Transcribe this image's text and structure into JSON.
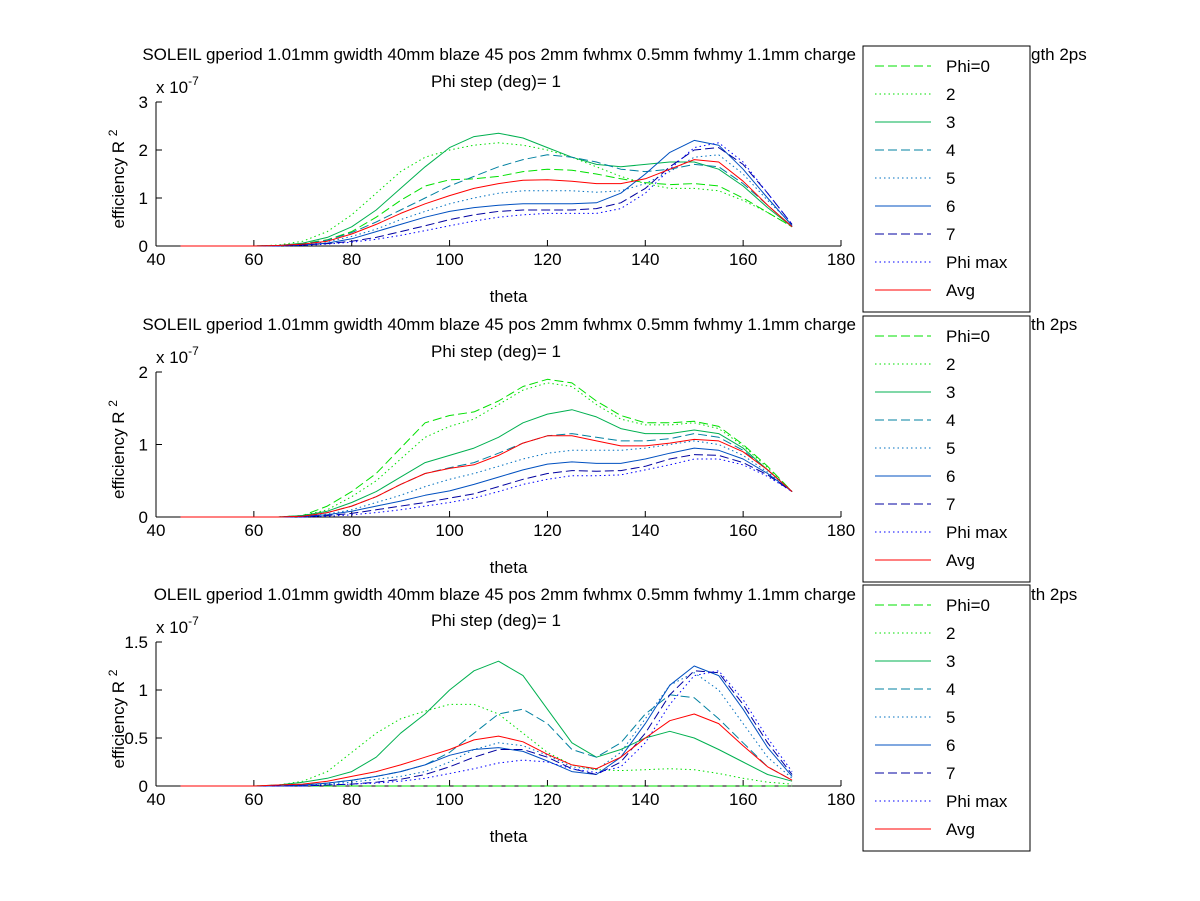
{
  "chart_data": [
    {
      "type": "line",
      "title": "SOLEIL gperiod 1.01mm gwidth 40mm blaze 45 pos 2mm fwhmx 0.5mm fwhmy 1.1mm charge",
      "title_suffix": "gth 2ps",
      "subtitle": "Phi step (deg)= 1",
      "xlabel": "theta",
      "ylabel": "efficiency R",
      "ylabel_sup": "2",
      "y_multiplier": "x 10",
      "y_multiplier_exp": "-7",
      "xlim": [
        40,
        180
      ],
      "ylim": [
        0,
        3
      ],
      "x_ticks": [
        "40",
        "60",
        "80",
        "100",
        "120",
        "140",
        "160",
        "180"
      ],
      "y_ticks": [
        "0",
        "1",
        "2",
        "3"
      ],
      "grid": false,
      "legend_position": "right",
      "x": [
        45,
        50,
        55,
        60,
        65,
        70,
        75,
        80,
        85,
        90,
        95,
        100,
        105,
        110,
        115,
        120,
        125,
        130,
        135,
        140,
        145,
        150,
        155,
        160,
        165,
        170
      ],
      "series": [
        {
          "name": "Phi=0",
          "color": "#00e000",
          "dash": "dashed",
          "values": [
            0,
            0,
            0,
            0,
            0.01,
            0.05,
            0.13,
            0.3,
            0.6,
            0.95,
            1.25,
            1.38,
            1.4,
            1.45,
            1.55,
            1.6,
            1.58,
            1.5,
            1.4,
            1.32,
            1.28,
            1.3,
            1.25,
            1.0,
            0.7,
            0.4
          ]
        },
        {
          "name": "2",
          "color": "#00e000",
          "dash": "dotted",
          "values": [
            0,
            0,
            0,
            0,
            0.02,
            0.1,
            0.3,
            0.65,
            1.1,
            1.55,
            1.85,
            2.0,
            2.1,
            2.15,
            2.1,
            2.0,
            1.85,
            1.65,
            1.45,
            1.3,
            1.2,
            1.2,
            1.15,
            0.95,
            0.7,
            0.4
          ]
        },
        {
          "name": "3",
          "color": "#00b050",
          "dash": "solid",
          "values": [
            0,
            0,
            0,
            0,
            0.01,
            0.06,
            0.18,
            0.4,
            0.75,
            1.2,
            1.65,
            2.05,
            2.28,
            2.35,
            2.25,
            2.05,
            1.85,
            1.7,
            1.65,
            1.7,
            1.75,
            1.75,
            1.6,
            1.25,
            0.8,
            0.4
          ]
        },
        {
          "name": "4",
          "color": "#0080a0",
          "dash": "dashed",
          "values": [
            0,
            0,
            0,
            0,
            0.01,
            0.04,
            0.12,
            0.28,
            0.5,
            0.75,
            1.0,
            1.25,
            1.45,
            1.65,
            1.8,
            1.9,
            1.85,
            1.75,
            1.6,
            1.55,
            1.6,
            1.7,
            1.65,
            1.3,
            0.85,
            0.4
          ]
        },
        {
          "name": "5",
          "color": "#0070c0",
          "dash": "dotted",
          "values": [
            0,
            0,
            0,
            0,
            0.01,
            0.03,
            0.09,
            0.2,
            0.35,
            0.55,
            0.72,
            0.88,
            1.0,
            1.1,
            1.15,
            1.15,
            1.15,
            1.12,
            1.15,
            1.3,
            1.55,
            1.85,
            1.9,
            1.5,
            0.95,
            0.45
          ]
        },
        {
          "name": "6",
          "color": "#0050c0",
          "dash": "solid",
          "values": [
            0,
            0,
            0,
            0,
            0.01,
            0.02,
            0.06,
            0.15,
            0.3,
            0.45,
            0.6,
            0.72,
            0.8,
            0.85,
            0.88,
            0.88,
            0.88,
            0.9,
            1.1,
            1.5,
            1.95,
            2.2,
            2.1,
            1.6,
            1.0,
            0.42
          ]
        },
        {
          "name": "7",
          "color": "#0000a0",
          "dash": "dashed",
          "values": [
            0,
            0,
            0,
            0,
            0,
            0.02,
            0.05,
            0.1,
            0.18,
            0.3,
            0.42,
            0.55,
            0.65,
            0.72,
            0.75,
            0.75,
            0.75,
            0.78,
            0.9,
            1.2,
            1.65,
            2.0,
            2.05,
            1.7,
            1.1,
            0.45
          ]
        },
        {
          "name": "Phi max",
          "color": "#0000ff",
          "dash": "dotted",
          "values": [
            0,
            0,
            0,
            0,
            0,
            0.01,
            0.04,
            0.08,
            0.14,
            0.22,
            0.32,
            0.42,
            0.52,
            0.6,
            0.65,
            0.68,
            0.68,
            0.68,
            0.78,
            1.1,
            1.6,
            2.05,
            2.15,
            1.75,
            1.1,
            0.45
          ]
        },
        {
          "name": "Avg",
          "color": "#ff0000",
          "dash": "solid",
          "values": [
            0,
            0,
            0,
            0,
            0.01,
            0.04,
            0.1,
            0.25,
            0.45,
            0.68,
            0.88,
            1.05,
            1.2,
            1.3,
            1.37,
            1.38,
            1.35,
            1.3,
            1.3,
            1.4,
            1.6,
            1.8,
            1.75,
            1.35,
            0.85,
            0.4
          ]
        }
      ]
    },
    {
      "type": "line",
      "title": "SOLEIL gperiod 1.01mm gwidth 40mm blaze 45 pos 2mm fwhmx 0.5mm fwhmy 1.1mm charge",
      "title_suffix": "th 2ps",
      "subtitle": "Phi step (deg)= 1",
      "xlabel": "theta",
      "ylabel": "efficiency R",
      "ylabel_sup": "2",
      "y_multiplier": "x 10",
      "y_multiplier_exp": "-7",
      "xlim": [
        40,
        180
      ],
      "ylim": [
        0,
        2
      ],
      "x_ticks": [
        "40",
        "60",
        "80",
        "100",
        "120",
        "140",
        "160",
        "180"
      ],
      "y_ticks": [
        "0",
        "1",
        "2"
      ],
      "grid": false,
      "legend_position": "right",
      "x": [
        45,
        50,
        55,
        60,
        65,
        70,
        75,
        80,
        85,
        90,
        95,
        100,
        105,
        110,
        115,
        120,
        125,
        130,
        135,
        140,
        145,
        150,
        155,
        160,
        165,
        170
      ],
      "series": [
        {
          "name": "Phi=0",
          "color": "#00e000",
          "dash": "dashed",
          "values": [
            0,
            0,
            0,
            0,
            0,
            0.02,
            0.15,
            0.35,
            0.6,
            0.95,
            1.3,
            1.4,
            1.45,
            1.6,
            1.8,
            1.9,
            1.85,
            1.6,
            1.4,
            1.3,
            1.3,
            1.32,
            1.25,
            1.0,
            0.7,
            0.35
          ]
        },
        {
          "name": "2",
          "color": "#00e000",
          "dash": "dotted",
          "values": [
            0,
            0,
            0,
            0,
            0,
            0.02,
            0.1,
            0.28,
            0.5,
            0.8,
            1.1,
            1.25,
            1.35,
            1.55,
            1.75,
            1.85,
            1.8,
            1.55,
            1.35,
            1.27,
            1.27,
            1.3,
            1.22,
            0.98,
            0.68,
            0.35
          ]
        },
        {
          "name": "3",
          "color": "#00b050",
          "dash": "solid",
          "values": [
            0,
            0,
            0,
            0,
            0,
            0.02,
            0.08,
            0.2,
            0.35,
            0.55,
            0.75,
            0.85,
            0.95,
            1.1,
            1.3,
            1.42,
            1.48,
            1.38,
            1.22,
            1.15,
            1.15,
            1.2,
            1.15,
            0.95,
            0.65,
            0.35
          ]
        },
        {
          "name": "4",
          "color": "#0080a0",
          "dash": "dashed",
          "values": [
            0,
            0,
            0,
            0,
            0,
            0.01,
            0.06,
            0.15,
            0.28,
            0.45,
            0.6,
            0.68,
            0.75,
            0.88,
            1.02,
            1.12,
            1.15,
            1.1,
            1.05,
            1.05,
            1.08,
            1.15,
            1.1,
            0.92,
            0.65,
            0.35
          ]
        },
        {
          "name": "5",
          "color": "#0070c0",
          "dash": "dotted",
          "values": [
            0,
            0,
            0,
            0,
            0,
            0.01,
            0.04,
            0.1,
            0.2,
            0.3,
            0.42,
            0.52,
            0.6,
            0.7,
            0.8,
            0.88,
            0.92,
            0.92,
            0.92,
            0.95,
            1.0,
            1.05,
            1.0,
            0.85,
            0.62,
            0.35
          ]
        },
        {
          "name": "6",
          "color": "#0050c0",
          "dash": "solid",
          "values": [
            0,
            0,
            0,
            0,
            0,
            0.01,
            0.03,
            0.08,
            0.15,
            0.22,
            0.3,
            0.36,
            0.45,
            0.55,
            0.65,
            0.73,
            0.76,
            0.74,
            0.74,
            0.8,
            0.88,
            0.95,
            0.92,
            0.8,
            0.6,
            0.35
          ]
        },
        {
          "name": "7",
          "color": "#0000a0",
          "dash": "dashed",
          "values": [
            0,
            0,
            0,
            0,
            0,
            0,
            0.02,
            0.05,
            0.1,
            0.15,
            0.2,
            0.26,
            0.32,
            0.42,
            0.52,
            0.6,
            0.64,
            0.63,
            0.64,
            0.7,
            0.8,
            0.86,
            0.85,
            0.75,
            0.58,
            0.35
          ]
        },
        {
          "name": "Phi max",
          "color": "#0000ff",
          "dash": "dotted",
          "values": [
            0,
            0,
            0,
            0,
            0,
            0,
            0.01,
            0.03,
            0.06,
            0.1,
            0.15,
            0.2,
            0.26,
            0.35,
            0.45,
            0.52,
            0.57,
            0.57,
            0.58,
            0.65,
            0.72,
            0.8,
            0.8,
            0.72,
            0.56,
            0.35
          ]
        },
        {
          "name": "Avg",
          "color": "#ff0000",
          "dash": "solid",
          "values": [
            0,
            0,
            0,
            0,
            0,
            0.01,
            0.06,
            0.15,
            0.28,
            0.45,
            0.6,
            0.67,
            0.72,
            0.85,
            1.02,
            1.12,
            1.12,
            1.05,
            0.98,
            0.98,
            1.02,
            1.07,
            1.05,
            0.9,
            0.65,
            0.35
          ]
        }
      ]
    },
    {
      "type": "line",
      "title": "OLEIL gperiod 1.01mm gwidth 40mm blaze 45 pos 2mm fwhmx 0.5mm fwhmy 1.1mm charge",
      "title_suffix": "th 2ps",
      "subtitle": "Phi step (deg)= 1",
      "xlabel": "theta",
      "ylabel": "efficiency R",
      "ylabel_sup": "2",
      "y_multiplier": "x 10",
      "y_multiplier_exp": "-7",
      "xlim": [
        40,
        180
      ],
      "ylim": [
        0,
        1.5
      ],
      "x_ticks": [
        "40",
        "60",
        "80",
        "100",
        "120",
        "140",
        "160",
        "180"
      ],
      "y_ticks": [
        "0",
        "0.5",
        "1",
        "1.5"
      ],
      "grid": false,
      "legend_position": "right",
      "x": [
        45,
        50,
        55,
        60,
        65,
        70,
        75,
        80,
        85,
        90,
        95,
        100,
        105,
        110,
        115,
        120,
        125,
        130,
        135,
        140,
        145,
        150,
        155,
        160,
        165,
        170
      ],
      "series": [
        {
          "name": "Phi=0",
          "color": "#00e000",
          "dash": "dashed",
          "values": [
            0,
            0,
            0,
            0,
            0,
            0,
            0,
            0,
            0,
            0,
            0,
            0,
            0,
            0,
            0,
            0,
            0,
            0,
            0,
            0,
            0,
            0,
            0,
            0,
            0,
            0
          ]
        },
        {
          "name": "2",
          "color": "#00e000",
          "dash": "dotted",
          "values": [
            0,
            0,
            0,
            0,
            0.01,
            0.05,
            0.15,
            0.35,
            0.55,
            0.7,
            0.78,
            0.85,
            0.85,
            0.75,
            0.55,
            0.35,
            0.22,
            0.17,
            0.16,
            0.17,
            0.18,
            0.17,
            0.13,
            0.08,
            0.04,
            0.02
          ]
        },
        {
          "name": "3",
          "color": "#00b050",
          "dash": "solid",
          "values": [
            0,
            0,
            0,
            0,
            0.01,
            0.04,
            0.08,
            0.15,
            0.3,
            0.55,
            0.75,
            1.0,
            1.2,
            1.3,
            1.15,
            0.8,
            0.45,
            0.3,
            0.38,
            0.5,
            0.57,
            0.5,
            0.38,
            0.25,
            0.12,
            0.05
          ]
        },
        {
          "name": "4",
          "color": "#0080a0",
          "dash": "dashed",
          "values": [
            0,
            0,
            0,
            0,
            0,
            0.01,
            0.03,
            0.06,
            0.1,
            0.15,
            0.22,
            0.35,
            0.55,
            0.75,
            0.8,
            0.65,
            0.38,
            0.3,
            0.45,
            0.75,
            0.95,
            0.92,
            0.7,
            0.45,
            0.2,
            0.06
          ]
        },
        {
          "name": "5",
          "color": "#0070c0",
          "dash": "dotted",
          "values": [
            0,
            0,
            0,
            0,
            0,
            0.01,
            0.02,
            0.04,
            0.07,
            0.1,
            0.15,
            0.25,
            0.38,
            0.45,
            0.42,
            0.32,
            0.2,
            0.17,
            0.35,
            0.7,
            1.05,
            1.18,
            1.0,
            0.65,
            0.3,
            0.08
          ]
        },
        {
          "name": "6",
          "color": "#0050c0",
          "dash": "solid",
          "values": [
            0,
            0,
            0,
            0,
            0,
            0.01,
            0.03,
            0.06,
            0.1,
            0.15,
            0.22,
            0.32,
            0.38,
            0.4,
            0.36,
            0.26,
            0.15,
            0.12,
            0.3,
            0.65,
            1.05,
            1.25,
            1.15,
            0.8,
            0.4,
            0.1
          ]
        },
        {
          "name": "7",
          "color": "#0000a0",
          "dash": "dashed",
          "values": [
            0,
            0,
            0,
            0,
            0,
            0,
            0.01,
            0.02,
            0.04,
            0.07,
            0.12,
            0.2,
            0.3,
            0.38,
            0.38,
            0.3,
            0.18,
            0.12,
            0.25,
            0.55,
            0.95,
            1.2,
            1.18,
            0.85,
            0.45,
            0.12
          ]
        },
        {
          "name": "Phi max",
          "color": "#0000ff",
          "dash": "dotted",
          "values": [
            0,
            0,
            0,
            0,
            0,
            0,
            0.01,
            0.02,
            0.03,
            0.05,
            0.08,
            0.13,
            0.18,
            0.24,
            0.27,
            0.25,
            0.18,
            0.14,
            0.2,
            0.45,
            0.85,
            1.15,
            1.2,
            0.9,
            0.5,
            0.15
          ]
        },
        {
          "name": "Avg",
          "color": "#ff0000",
          "dash": "solid",
          "values": [
            0,
            0,
            0,
            0,
            0.01,
            0.02,
            0.05,
            0.1,
            0.15,
            0.22,
            0.3,
            0.38,
            0.48,
            0.52,
            0.46,
            0.33,
            0.22,
            0.18,
            0.3,
            0.5,
            0.68,
            0.75,
            0.65,
            0.42,
            0.2,
            0.06
          ]
        }
      ]
    }
  ]
}
